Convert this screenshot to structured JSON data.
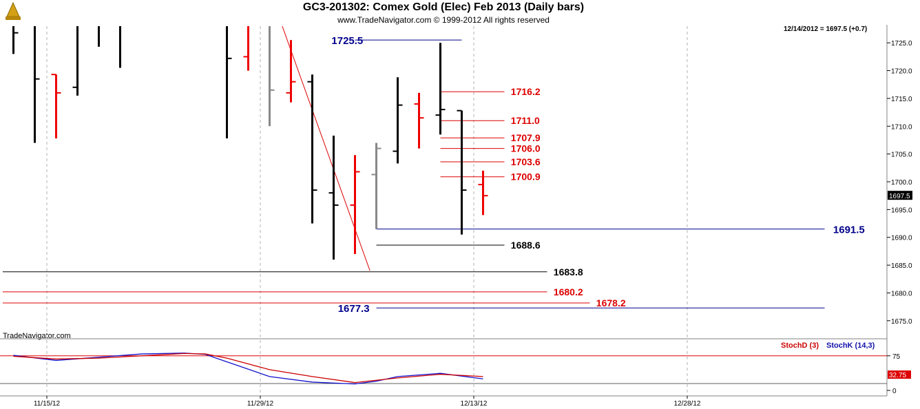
{
  "title": "GC3-201302:  Comex Gold (Elec) Feb 2013  (Daily bars)",
  "subtitle": "www.TradeNavigator.com © 1999-2012 All rights reserved",
  "watermark": "TradeNavigator.com",
  "last_info": "12/14/2012 = 1697.5 (+0.7)",
  "indicator_labels": {
    "stoch_d": "StochD (3)",
    "stoch_k": "StochK (14,3)"
  },
  "colors": {
    "up_bar": "#000000",
    "down_bar": "#ee0000",
    "neutral_bar": "#888888",
    "level_red": "#dd0000",
    "level_blue": "#00008b",
    "stoch_d": "#cc0000",
    "stoch_k": "#1111cc"
  },
  "chart_data": {
    "type": "bar",
    "title": "GC3-201302:  Comex Gold (Elec) Feb 2013  (Daily bars)",
    "xlabel": "",
    "ylabel": "",
    "ylim": [
      1672,
      1728
    ],
    "x_ticks": [
      {
        "label": "11/15/12",
        "slot": 2
      },
      {
        "label": "11/29/12",
        "slot": 12
      },
      {
        "label": "12/13/12",
        "slot": 22
      },
      {
        "label": "12/28/12",
        "slot": 32
      }
    ],
    "y_ticks": [
      1675.0,
      1680.0,
      1685.0,
      1690.0,
      1695.0,
      1700.0,
      1705.0,
      1710.0,
      1715.0,
      1720.0,
      1725.0
    ],
    "last_price": "1697.5",
    "ohlc": [
      {
        "slot": 0.5,
        "high": 1729.0,
        "low": 1723.0,
        "open": 1729.0,
        "close": 1726.8,
        "color": "black"
      },
      {
        "slot": 1.5,
        "high": 1729.0,
        "low": 1707.0,
        "open": 1729.0,
        "close": 1718.5,
        "color": "black"
      },
      {
        "slot": 2.5,
        "high": 1719.3,
        "low": 1707.8,
        "open": 1719.3,
        "close": 1716.0,
        "color": "red"
      },
      {
        "slot": 3.5,
        "high": 1729.0,
        "low": 1715.5,
        "open": 1717.0,
        "close": 1729.0,
        "color": "black"
      },
      {
        "slot": 4.5,
        "high": 1729.0,
        "low": 1724.3,
        "open": 1729.0,
        "close": 1729.0,
        "color": "black"
      },
      {
        "slot": 5.5,
        "high": 1729.0,
        "low": 1720.5,
        "open": 1729.0,
        "close": 1729.0,
        "color": "black"
      },
      {
        "slot": 10.5,
        "high": 1729.0,
        "low": 1707.8,
        "open": 1729.0,
        "close": 1722.2,
        "color": "black"
      },
      {
        "slot": 11.5,
        "high": 1729.0,
        "low": 1720.0,
        "open": 1722.5,
        "close": 1729.0,
        "color": "red"
      },
      {
        "slot": 12.5,
        "high": 1729.0,
        "low": 1710.0,
        "open": 1729.0,
        "close": 1716.5,
        "color": "gray"
      },
      {
        "slot": 13.5,
        "high": 1725.5,
        "low": 1714.3,
        "open": 1716.0,
        "close": 1718.0,
        "color": "red"
      },
      {
        "slot": 14.5,
        "high": 1719.3,
        "low": 1692.5,
        "open": 1718.0,
        "close": 1698.5,
        "color": "black"
      },
      {
        "slot": 15.5,
        "high": 1708.3,
        "low": 1686.0,
        "open": 1698.0,
        "close": 1695.8,
        "color": "black"
      },
      {
        "slot": 16.5,
        "high": 1704.8,
        "low": 1687.0,
        "open": 1695.8,
        "close": 1701.8,
        "color": "red"
      },
      {
        "slot": 17.5,
        "high": 1707.0,
        "low": 1691.5,
        "open": 1701.3,
        "close": 1706.0,
        "color": "gray"
      },
      {
        "slot": 18.5,
        "high": 1718.8,
        "low": 1703.3,
        "open": 1705.5,
        "close": 1713.8,
        "color": "black"
      },
      {
        "slot": 19.5,
        "high": 1716.0,
        "low": 1706.0,
        "open": 1714.0,
        "close": 1711.5,
        "color": "red"
      },
      {
        "slot": 20.5,
        "high": 1725.0,
        "low": 1708.5,
        "open": 1712.0,
        "close": 1713.0,
        "color": "black"
      },
      {
        "slot": 21.5,
        "high": 1712.8,
        "low": 1690.5,
        "open": 1712.8,
        "close": 1698.5,
        "color": "black"
      },
      {
        "slot": 22.5,
        "high": 1702.0,
        "low": 1694.0,
        "open": 1699.5,
        "close": 1697.5,
        "color": "red"
      }
    ],
    "trendline": {
      "start": {
        "slot": 13.0,
        "price": 1729.0
      },
      "end": {
        "slot": 17.2,
        "price": 1684.0
      },
      "color": "red"
    },
    "levels": [
      {
        "price": 1725.5,
        "label": "1725.5",
        "color": "blue",
        "from_slot": 16.5,
        "to_slot": 21.5,
        "label_slot": 15.4
      },
      {
        "price": 1716.2,
        "label": "1716.2",
        "color": "red",
        "from_slot": 20.5,
        "to_slot": 23.5,
        "label_slot": 23.8
      },
      {
        "price": 1711.0,
        "label": "1711.0",
        "color": "red",
        "from_slot": 20.5,
        "to_slot": 23.5,
        "label_slot": 23.8
      },
      {
        "price": 1707.9,
        "label": "1707.9",
        "color": "red",
        "from_slot": 20.5,
        "to_slot": 23.5,
        "label_slot": 23.8
      },
      {
        "price": 1706.0,
        "label": "1706.0",
        "color": "red",
        "from_slot": 20.5,
        "to_slot": 23.5,
        "label_slot": 23.8
      },
      {
        "price": 1703.6,
        "label": "1703.6",
        "color": "red",
        "from_slot": 20.5,
        "to_slot": 23.5,
        "label_slot": 23.8
      },
      {
        "price": 1700.9,
        "label": "1700.9",
        "color": "red",
        "from_slot": 20.5,
        "to_slot": 23.5,
        "label_slot": 23.8
      },
      {
        "price": 1691.5,
        "label": "1691.5",
        "color": "blue",
        "from_slot": 17.5,
        "to_slot": 38.5,
        "label_slot": 38.9
      },
      {
        "price": 1688.6,
        "label": "1688.6",
        "color": "black",
        "from_slot": 17.5,
        "to_slot": 23.5,
        "label_slot": 23.8
      },
      {
        "price": 1683.8,
        "label": "1683.8",
        "color": "black",
        "from_slot": 0.0,
        "to_slot": 25.5,
        "label_slot": 25.8
      },
      {
        "price": 1680.2,
        "label": "1680.2",
        "color": "red",
        "from_slot": 0.0,
        "to_slot": 25.5,
        "label_slot": 25.8
      },
      {
        "price": 1678.2,
        "label": "1678.2",
        "color": "red",
        "from_slot": 0.0,
        "to_slot": 27.5,
        "label_slot": 27.8
      },
      {
        "price": 1677.3,
        "label": "1677.3",
        "color": "blue",
        "from_slot": 17.5,
        "to_slot": 38.5,
        "label_slot": 15.7
      }
    ],
    "stochastic": {
      "ylim": [
        0,
        100
      ],
      "y_ticks": [
        0,
        75
      ],
      "ref_levels": [
        75,
        15
      ],
      "last_value": "32.75",
      "stoch_d": [
        {
          "slot": 0.5,
          "y": 74
        },
        {
          "slot": 2.5,
          "y": 68
        },
        {
          "slot": 4.5,
          "y": 70
        },
        {
          "slot": 6.5,
          "y": 75
        },
        {
          "slot": 8.5,
          "y": 80
        },
        {
          "slot": 9.5,
          "y": 79
        },
        {
          "slot": 10.5,
          "y": 70
        },
        {
          "slot": 12.5,
          "y": 45
        },
        {
          "slot": 14.5,
          "y": 30
        },
        {
          "slot": 16.5,
          "y": 17
        },
        {
          "slot": 17.5,
          "y": 22
        },
        {
          "slot": 18.5,
          "y": 27
        },
        {
          "slot": 20.5,
          "y": 35
        },
        {
          "slot": 22.5,
          "y": 30
        }
      ],
      "stoch_k": [
        {
          "slot": 0.5,
          "y": 76
        },
        {
          "slot": 2.5,
          "y": 65
        },
        {
          "slot": 4.5,
          "y": 72
        },
        {
          "slot": 6.5,
          "y": 79
        },
        {
          "slot": 8.5,
          "y": 81
        },
        {
          "slot": 9.5,
          "y": 78
        },
        {
          "slot": 10.5,
          "y": 62
        },
        {
          "slot": 12.5,
          "y": 30
        },
        {
          "slot": 14.5,
          "y": 18
        },
        {
          "slot": 16.5,
          "y": 14
        },
        {
          "slot": 17.5,
          "y": 20
        },
        {
          "slot": 18.5,
          "y": 30
        },
        {
          "slot": 20.5,
          "y": 37
        },
        {
          "slot": 22.5,
          "y": 25
        }
      ]
    }
  }
}
